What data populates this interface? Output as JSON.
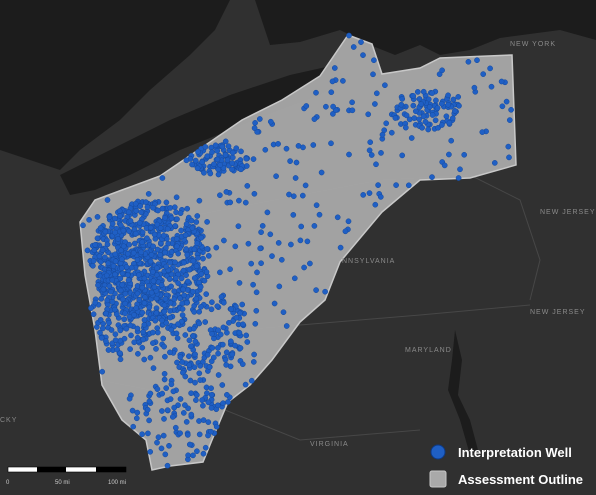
{
  "map_labels": [
    "NEW YORK",
    "NEW JERSEY",
    "NEW JERSEY",
    "NNSYLVANIA",
    "MARYLAND",
    "VIRGINIA",
    "CKY"
  ],
  "legend": {
    "items": [
      "Interpretation Well",
      "Assessment Outline"
    ]
  },
  "scale_bar": {
    "labels": [
      "0",
      "50 mi",
      "100 mi"
    ]
  }
}
